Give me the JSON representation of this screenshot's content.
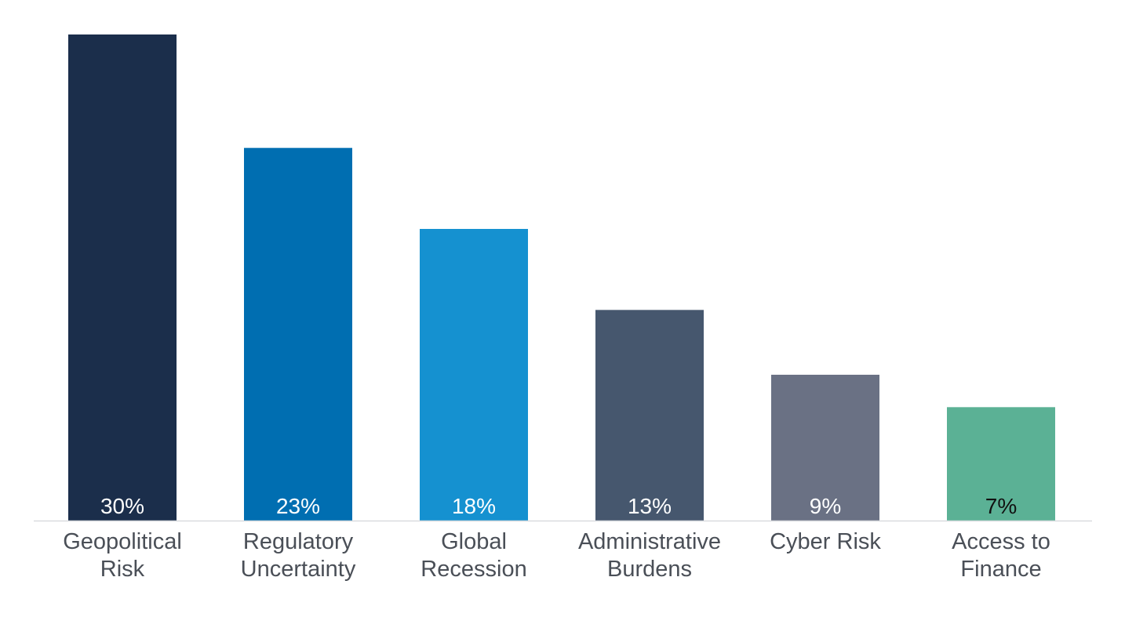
{
  "chart_data": {
    "type": "bar",
    "title": "",
    "xlabel": "",
    "ylabel": "",
    "ylim": [
      0,
      30
    ],
    "grid": false,
    "legend": "none",
    "categories": [
      [
        "Geopolitical",
        "Risk"
      ],
      [
        "Regulatory",
        "Uncertainty"
      ],
      [
        "Global",
        "Recession"
      ],
      [
        "Administrative",
        "Burdens"
      ],
      [
        "Cyber Risk"
      ],
      [
        "Access to",
        "Finance"
      ]
    ],
    "values": [
      30,
      23,
      18,
      13,
      9,
      7
    ],
    "data_labels": [
      "30%",
      "23%",
      "18%",
      "13%",
      "9%",
      "7%"
    ],
    "colors": [
      "#1b2e4b",
      "#006eb1",
      "#1591d0",
      "#46576e",
      "#6a7184",
      "#5bb195"
    ],
    "label_colors": [
      "#ffffff",
      "#ffffff",
      "#ffffff",
      "#ffffff",
      "#ffffff",
      "#111111"
    ]
  }
}
